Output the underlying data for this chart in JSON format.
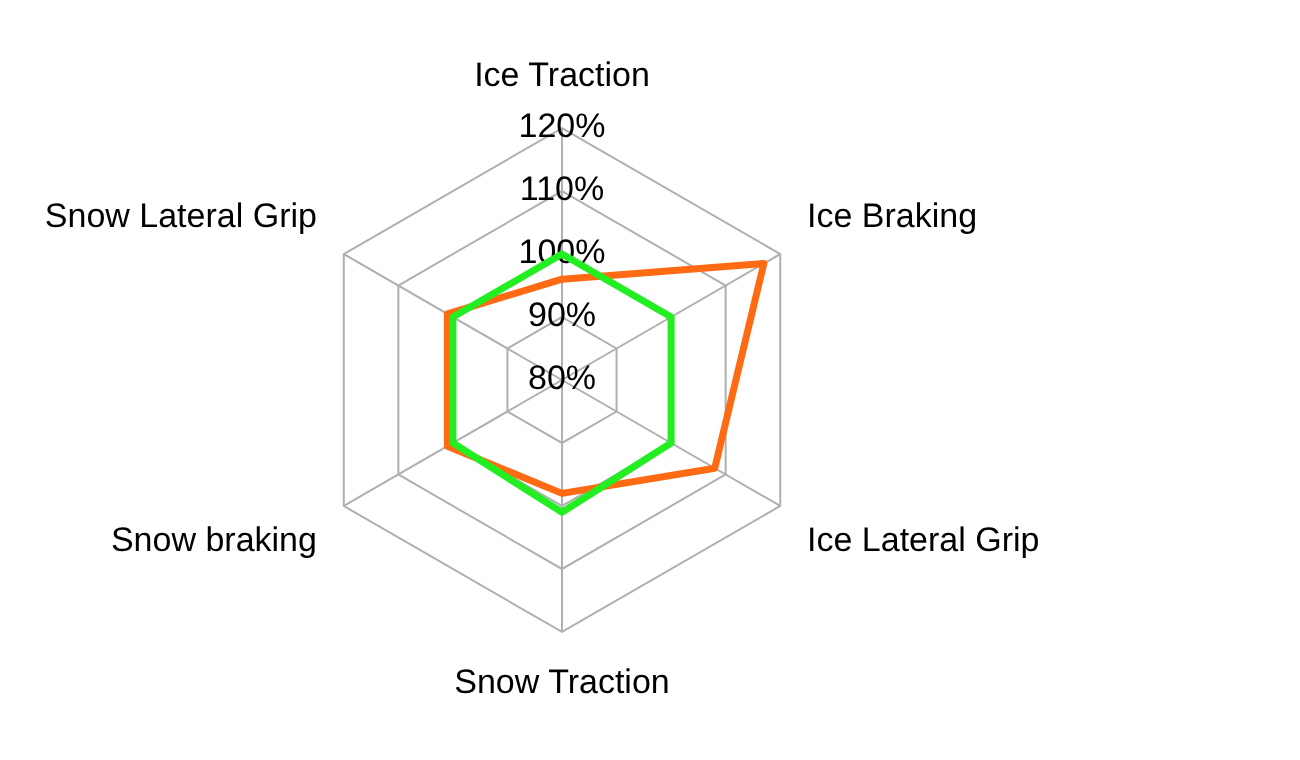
{
  "chart_data": {
    "type": "radar",
    "categories": [
      "Ice Traction",
      "Ice Braking",
      "Ice Lateral Grip",
      "Snow Traction",
      "Snow braking",
      "Snow Lateral Grip"
    ],
    "series": [
      {
        "color": "#22ee22",
        "values": [
          100,
          100,
          100,
          101,
          100,
          100
        ]
      },
      {
        "color": "#ff6a13",
        "values": [
          96,
          117,
          108,
          98,
          101,
          101
        ]
      }
    ],
    "ylim": [
      80,
      120
    ],
    "yticks": [
      {
        "value": 80,
        "label": "80%"
      },
      {
        "value": 90,
        "label": "90%"
      },
      {
        "value": 100,
        "label": "100%"
      },
      {
        "value": 110,
        "label": "110%"
      },
      {
        "value": 120,
        "label": "120%"
      }
    ],
    "grid": true,
    "marker": "none",
    "line_style": "solid"
  }
}
